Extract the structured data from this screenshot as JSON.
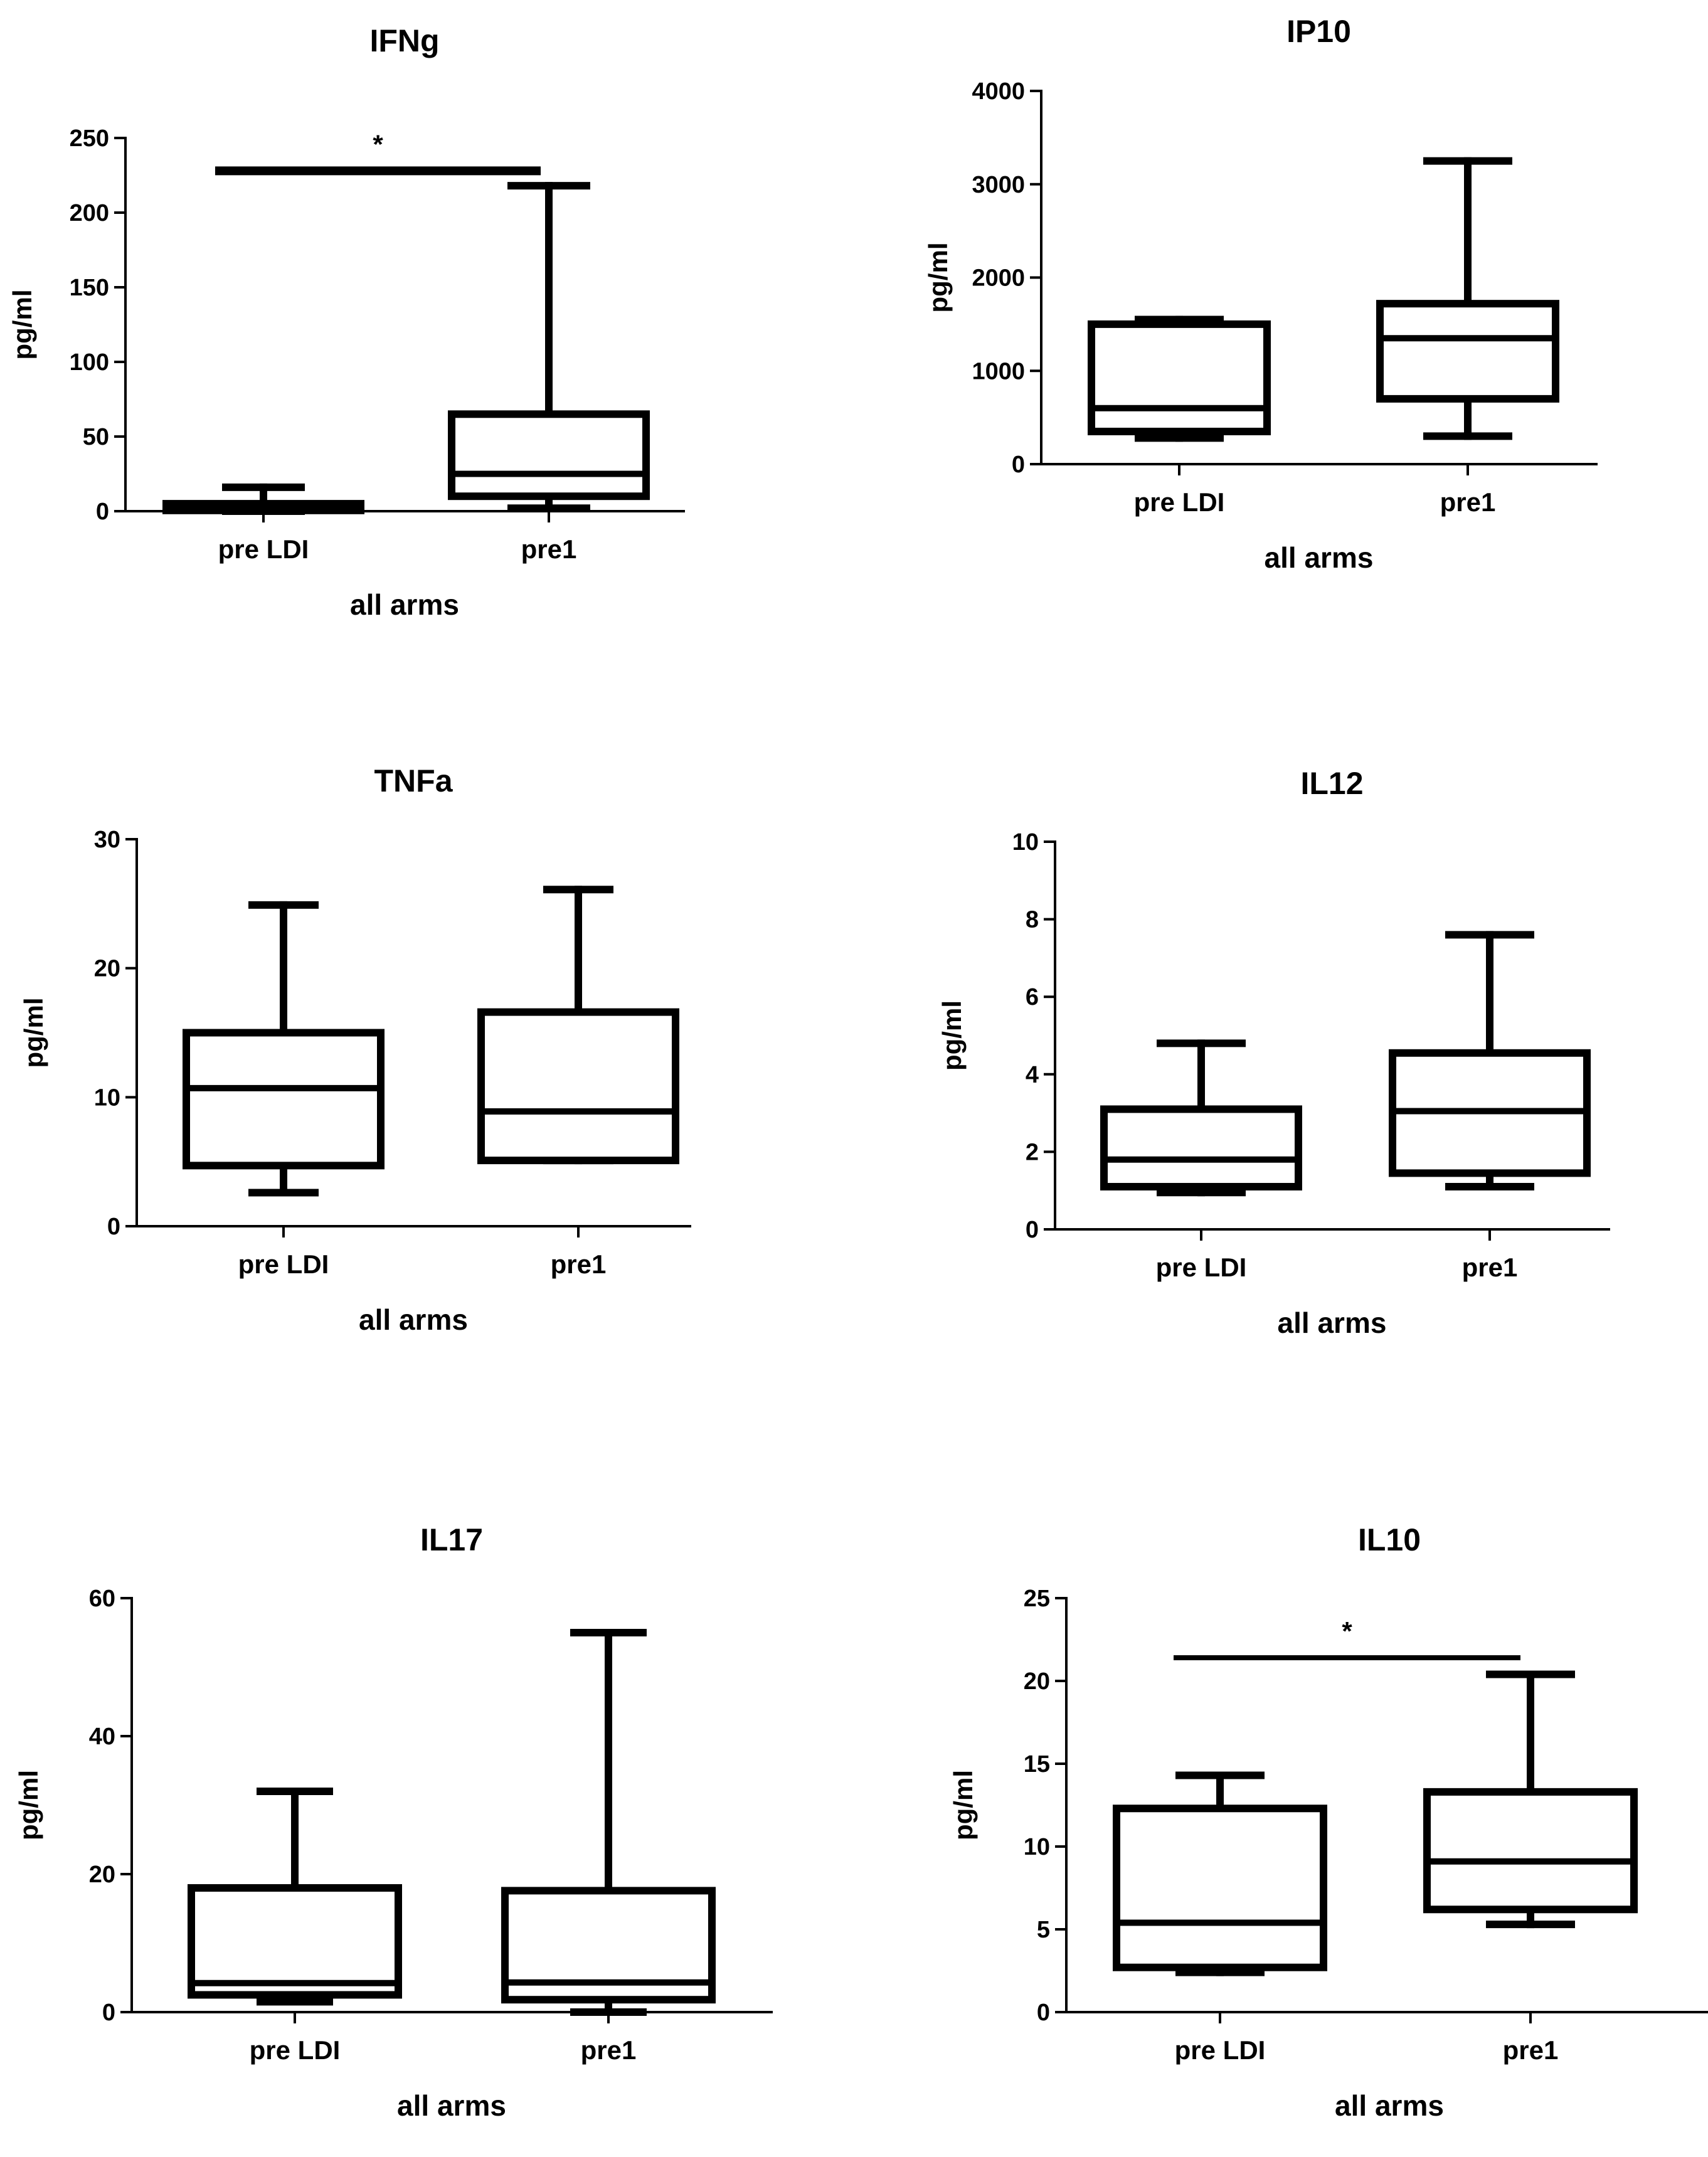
{
  "chart_data": [
    {
      "type": "boxplot",
      "title": "IFNg",
      "ylabel": "pg/ml",
      "xlabel": "all arms",
      "ylim": [
        0,
        250
      ],
      "yticks": [
        0,
        50,
        100,
        150,
        200,
        250
      ],
      "categories": [
        "pre LDI",
        "pre1"
      ],
      "boxes": [
        {
          "name": "pre LDI",
          "min": 0,
          "q1": 0.5,
          "median": 2,
          "q3": 5,
          "max": 16
        },
        {
          "name": "pre1",
          "min": 2,
          "q1": 10,
          "median": 25,
          "q3": 65,
          "max": 218
        }
      ],
      "significance": {
        "label": "*",
        "value": 228,
        "from": "pre LDI",
        "to": "pre1"
      }
    },
    {
      "type": "boxplot",
      "title": "IP10",
      "ylabel": "pg/ml",
      "xlabel": "all arms",
      "ylim": [
        0,
        4000
      ],
      "yticks": [
        0,
        1000,
        2000,
        3000,
        4000
      ],
      "categories": [
        "pre LDI",
        "pre1"
      ],
      "boxes": [
        {
          "name": "pre LDI",
          "min": 280,
          "q1": 350,
          "median": 600,
          "q3": 1500,
          "max": 1550
        },
        {
          "name": "pre1",
          "min": 300,
          "q1": 700,
          "median": 1350,
          "q3": 1720,
          "max": 3250
        }
      ]
    },
    {
      "type": "boxplot",
      "title": "TNFa",
      "ylabel": "pg/ml",
      "xlabel": "all arms",
      "ylim": [
        0,
        30
      ],
      "yticks": [
        0,
        10,
        20,
        30
      ],
      "categories": [
        "pre LDI",
        "pre1"
      ],
      "boxes": [
        {
          "name": "pre LDI",
          "min": 2.6,
          "q1": 4.7,
          "median": 10.7,
          "q3": 15,
          "max": 24.9
        },
        {
          "name": "pre1",
          "min": 5.1,
          "q1": 5.1,
          "median": 8.9,
          "q3": 16.6,
          "max": 26.1
        }
      ]
    },
    {
      "type": "boxplot",
      "title": "IL12",
      "ylabel": "pg/ml",
      "xlabel": "all arms",
      "ylim": [
        0,
        10
      ],
      "yticks": [
        0,
        2,
        4,
        6,
        8,
        10
      ],
      "categories": [
        "pre LDI",
        "pre1"
      ],
      "boxes": [
        {
          "name": "pre LDI",
          "min": 0.95,
          "q1": 1.1,
          "median": 1.8,
          "q3": 3.1,
          "max": 4.8
        },
        {
          "name": "pre1",
          "min": 1.1,
          "q1": 1.45,
          "median": 3.05,
          "q3": 4.55,
          "max": 7.6
        }
      ]
    },
    {
      "type": "boxplot",
      "title": "IL17",
      "ylabel": "pg/ml",
      "xlabel": "all arms",
      "ylim": [
        0,
        60
      ],
      "yticks": [
        0,
        20,
        40,
        60
      ],
      "categories": [
        "pre LDI",
        "pre1"
      ],
      "boxes": [
        {
          "name": "pre LDI",
          "min": 1.5,
          "q1": 2.5,
          "median": 4.2,
          "q3": 18,
          "max": 32
        },
        {
          "name": "pre1",
          "min": 0,
          "q1": 1.8,
          "median": 4.3,
          "q3": 17.6,
          "max": 55
        }
      ]
    },
    {
      "type": "boxplot",
      "title": "IL10",
      "ylabel": "pg/ml",
      "xlabel": "all arms",
      "ylim": [
        0,
        25
      ],
      "yticks": [
        0,
        5,
        10,
        15,
        20,
        25
      ],
      "categories": [
        "pre LDI",
        "pre1"
      ],
      "boxes": [
        {
          "name": "pre LDI",
          "min": 2.4,
          "q1": 2.7,
          "median": 5.4,
          "q3": 12.3,
          "max": 14.3
        },
        {
          "name": "pre1",
          "min": 5.3,
          "q1": 6.2,
          "median": 9.1,
          "q3": 13.3,
          "max": 20.4
        }
      ],
      "significance": {
        "label": "*",
        "value": 21.4,
        "from": "pre LDI",
        "to": "pre1"
      }
    }
  ]
}
